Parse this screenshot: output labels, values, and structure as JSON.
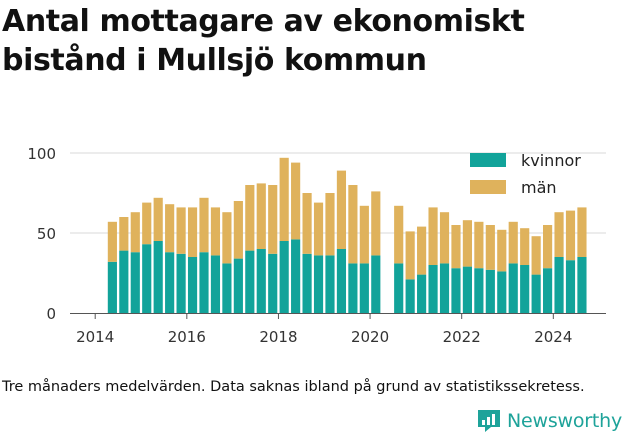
{
  "header": {
    "title_line1": "Antal mottagare av ekonomiskt",
    "title_line2": "bistånd i Mullsjö kommun"
  },
  "footer": {
    "caption": "Tre månaders medelvärden. Data saknas ibland på grund av statistikssekretess.",
    "brand": "Newsworthy"
  },
  "colors": {
    "kvinnor": "#12a39a",
    "man": "#dfb25c",
    "grid": "#d9d9d9",
    "text": "#333333"
  },
  "chart_data": {
    "type": "bar",
    "stacked": true,
    "title": "Antal mottagare av ekonomiskt bistånd i Mullsjö kommun",
    "xlabel": "",
    "ylabel": "",
    "ylim": [
      0,
      100
    ],
    "y_ticks": [
      0,
      50,
      100
    ],
    "x_ticks": [
      2014,
      2016,
      2018,
      2020,
      2022,
      2024
    ],
    "xlim": [
      2013.45,
      2025.15
    ],
    "legend_position": "top-right",
    "grid": true,
    "x": [
      2014.375,
      2014.625,
      2014.875,
      2015.125,
      2015.375,
      2015.625,
      2015.875,
      2016.125,
      2016.375,
      2016.625,
      2016.875,
      2017.125,
      2017.375,
      2017.625,
      2017.875,
      2018.125,
      2018.375,
      2018.625,
      2018.875,
      2019.125,
      2019.375,
      2019.625,
      2019.875,
      2020.125,
      2020.375,
      2020.625,
      2020.875,
      2021.125,
      2021.375,
      2021.625,
      2021.875,
      2022.125,
      2022.375,
      2022.625,
      2022.875,
      2023.125,
      2023.375,
      2023.625,
      2023.875,
      2024.125,
      2024.375,
      2024.625
    ],
    "series": [
      {
        "name": "kvinnor",
        "values": [
          32,
          39,
          38,
          43,
          45,
          38,
          37,
          35,
          38,
          36,
          31,
          34,
          39,
          40,
          37,
          45,
          46,
          37,
          36,
          36,
          40,
          31,
          31,
          36,
          null,
          31,
          21,
          24,
          30,
          31,
          28,
          29,
          28,
          27,
          26,
          31,
          30,
          24,
          28,
          35,
          33,
          35
        ]
      },
      {
        "name": "män",
        "values": [
          25,
          21,
          25,
          26,
          27,
          30,
          29,
          31,
          34,
          30,
          32,
          36,
          41,
          41,
          43,
          52,
          48,
          38,
          33,
          39,
          49,
          49,
          36,
          40,
          null,
          36,
          30,
          30,
          36,
          32,
          27,
          29,
          29,
          28,
          26,
          26,
          23,
          24,
          27,
          28,
          31,
          31
        ]
      }
    ]
  }
}
